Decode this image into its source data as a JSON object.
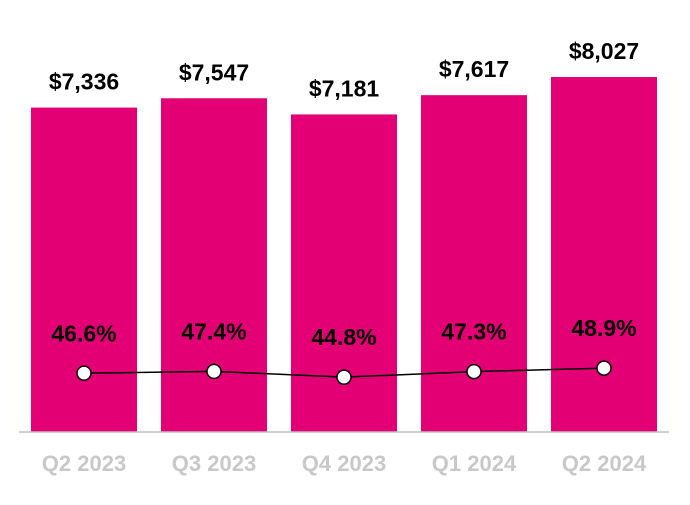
{
  "chart_data": {
    "type": "bar",
    "categories": [
      "Q2 2023",
      "Q3 2023",
      "Q4 2023",
      "Q1 2024",
      "Q2 2024"
    ],
    "series": [
      {
        "type": "bar",
        "color": "#e20074",
        "values": [
          7336,
          7547,
          7181,
          7617,
          8027
        ],
        "value_labels": [
          "$7,336",
          "$7,547",
          "$7,181",
          "$7,617",
          "$8,027"
        ]
      },
      {
        "type": "line",
        "axis": "y2",
        "color": "#000000",
        "values": [
          46.6,
          47.4,
          44.8,
          47.3,
          48.9
        ],
        "value_labels": [
          "46.6%",
          "47.4%",
          "44.8%",
          "47.3%",
          "48.9%"
        ]
      }
    ],
    "ylim": [
      0,
      9000
    ],
    "y2lim": [
      20,
      200
    ]
  }
}
